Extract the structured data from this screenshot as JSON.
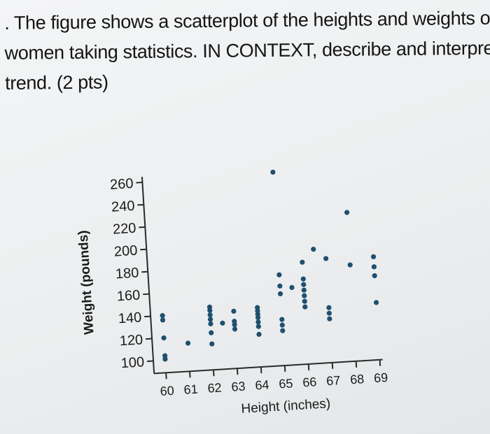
{
  "question": {
    "line1": ". The figure shows a scatterplot of the heights and weights of some",
    "line2": "women taking statistics. IN CONTEXT, describe and interpret the",
    "line3": "trend. (2 pts)"
  },
  "chart_data": {
    "type": "scatter",
    "title": "",
    "xlabel": "Height (inches)",
    "ylabel": "Weight (pounds)",
    "xlim": [
      59.5,
      69.5
    ],
    "ylim": [
      95,
      265
    ],
    "xticks": [
      60,
      61,
      62,
      63,
      64,
      65,
      66,
      67,
      68,
      69
    ],
    "yticks": [
      100,
      120,
      140,
      160,
      180,
      200,
      220,
      240,
      260
    ],
    "grid": false,
    "color": "#1f4f6f",
    "points": [
      {
        "x": 60,
        "y": 101
      },
      {
        "x": 60,
        "y": 104
      },
      {
        "x": 60,
        "y": 120
      },
      {
        "x": 60,
        "y": 136
      },
      {
        "x": 60,
        "y": 140
      },
      {
        "x": 61,
        "y": 114
      },
      {
        "x": 62,
        "y": 112
      },
      {
        "x": 62,
        "y": 122
      },
      {
        "x": 62,
        "y": 130
      },
      {
        "x": 62,
        "y": 134
      },
      {
        "x": 62,
        "y": 138
      },
      {
        "x": 62,
        "y": 142
      },
      {
        "x": 62,
        "y": 145
      },
      {
        "x": 62.5,
        "y": 130
      },
      {
        "x": 63,
        "y": 124
      },
      {
        "x": 63,
        "y": 128
      },
      {
        "x": 63,
        "y": 131
      },
      {
        "x": 63,
        "y": 140
      },
      {
        "x": 64,
        "y": 118
      },
      {
        "x": 64,
        "y": 125
      },
      {
        "x": 64,
        "y": 129
      },
      {
        "x": 64,
        "y": 133
      },
      {
        "x": 64,
        "y": 136
      },
      {
        "x": 64,
        "y": 139
      },
      {
        "x": 64,
        "y": 142
      },
      {
        "x": 65,
        "y": 120
      },
      {
        "x": 65,
        "y": 125
      },
      {
        "x": 65,
        "y": 130
      },
      {
        "x": 65,
        "y": 153
      },
      {
        "x": 65,
        "y": 160
      },
      {
        "x": 65,
        "y": 170
      },
      {
        "x": 65.5,
        "y": 158
      },
      {
        "x": 65,
        "y": 262
      },
      {
        "x": 66,
        "y": 140
      },
      {
        "x": 66,
        "y": 145
      },
      {
        "x": 66,
        "y": 150
      },
      {
        "x": 66,
        "y": 155
      },
      {
        "x": 66,
        "y": 160
      },
      {
        "x": 66,
        "y": 165
      },
      {
        "x": 66,
        "y": 180
      },
      {
        "x": 66.5,
        "y": 191
      },
      {
        "x": 67,
        "y": 128
      },
      {
        "x": 67,
        "y": 133
      },
      {
        "x": 67,
        "y": 138
      },
      {
        "x": 67,
        "y": 182
      },
      {
        "x": 68,
        "y": 175
      },
      {
        "x": 68,
        "y": 222
      },
      {
        "x": 69,
        "y": 140
      },
      {
        "x": 69,
        "y": 164
      },
      {
        "x": 69,
        "y": 172
      },
      {
        "x": 69,
        "y": 181
      }
    ]
  }
}
